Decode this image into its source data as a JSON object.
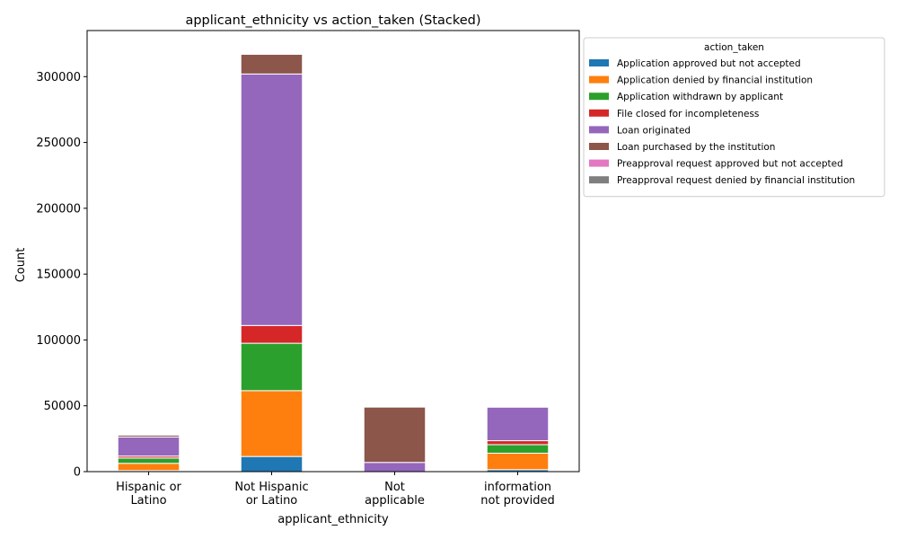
{
  "chart_data": {
    "type": "bar",
    "stacked": true,
    "title": "applicant_ethnicity vs action_taken (Stacked)",
    "xlabel": "applicant_ethnicity",
    "ylabel": "Count",
    "ylim": [
      0,
      335000
    ],
    "yticks": [
      0,
      50000,
      100000,
      150000,
      200000,
      250000,
      300000
    ],
    "categories": [
      [
        "Hispanic or",
        "Latino"
      ],
      [
        "Not Hispanic",
        "or Latino"
      ],
      [
        "Not",
        "applicable"
      ],
      [
        "information",
        "not provided"
      ]
    ],
    "legend": {
      "title": "action_taken",
      "placement": "upper-right outside"
    },
    "series": [
      {
        "name": "Application approved but not accepted",
        "color": "#1f77b4",
        "values": [
          800,
          11500,
          0,
          1500
        ]
      },
      {
        "name": "Application denied by financial institution",
        "color": "#ff7f0e",
        "values": [
          5500,
          50000,
          0,
          12500
        ]
      },
      {
        "name": "Application withdrawn by applicant",
        "color": "#2ca02c",
        "values": [
          4000,
          36000,
          0,
          6500
        ]
      },
      {
        "name": "File closed for incompleteness",
        "color": "#d62728",
        "values": [
          1500,
          13500,
          0,
          3000
        ]
      },
      {
        "name": "Loan originated",
        "color": "#9467bd",
        "values": [
          14500,
          191000,
          7000,
          25500
        ]
      },
      {
        "name": "Loan purchased by the institution",
        "color": "#8c564b",
        "values": [
          1500,
          15000,
          42000,
          500
        ]
      },
      {
        "name": "Preapproval request approved but not accepted",
        "color": "#e377c2",
        "values": [
          100,
          200,
          0,
          0
        ]
      },
      {
        "name": "Preapproval request denied by financial institution",
        "color": "#7f7f7f",
        "values": [
          200,
          300,
          0,
          0
        ]
      }
    ]
  }
}
